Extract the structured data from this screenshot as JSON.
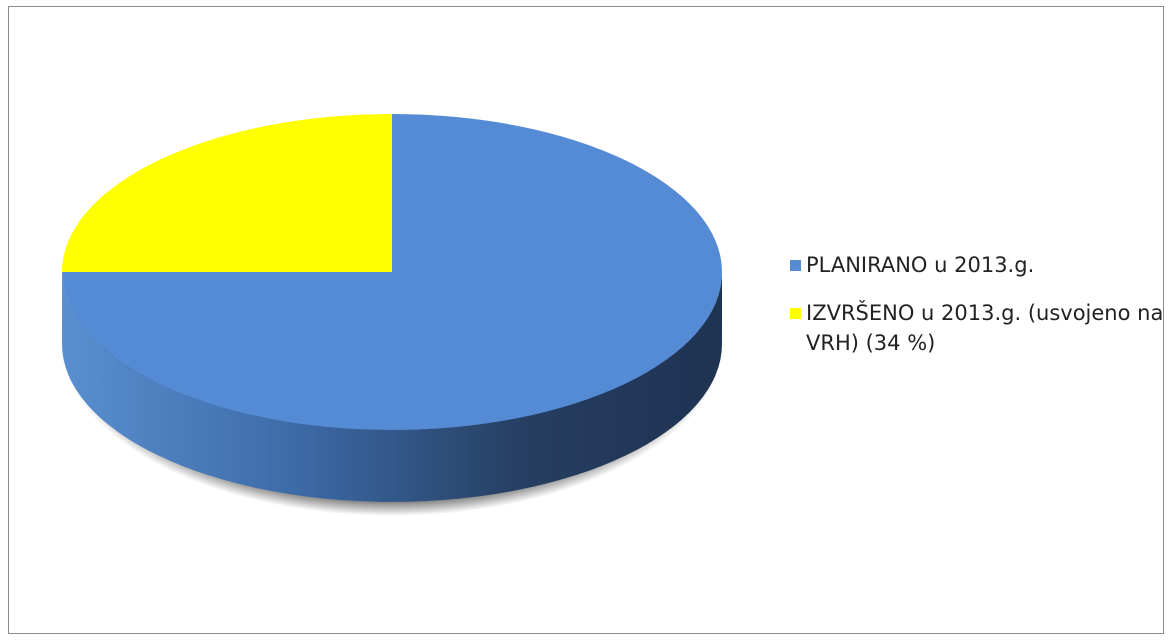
{
  "chart_data": {
    "type": "pie",
    "style": "3d",
    "title": "",
    "legend_position": "right",
    "series": [
      {
        "name": "PLANIRANO u 2013.g.",
        "color": "#548bd4",
        "value": 75
      },
      {
        "name": "IZVRŠENO u 2013.g. (usvojeno na VRH) (34 %)",
        "color": "#ffff00",
        "value": 25
      }
    ]
  }
}
